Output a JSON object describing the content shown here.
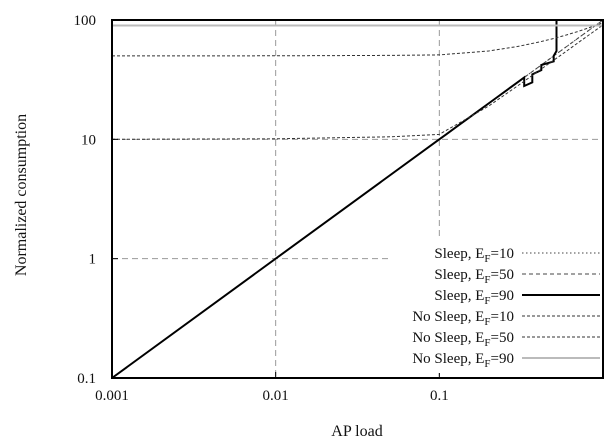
{
  "chart_data": {
    "type": "line",
    "title": "",
    "xlabel": "AP load",
    "ylabel": "Normalized consumption",
    "xscale": "log",
    "yscale": "log",
    "xlim": [
      0.001,
      1
    ],
    "ylim": [
      0.1,
      100
    ],
    "x_ticks": [
      {
        "value": 0.001,
        "label": "0.001"
      },
      {
        "value": 0.01,
        "label": "0.01"
      },
      {
        "value": 0.1,
        "label": "0.1"
      }
    ],
    "y_ticks": [
      {
        "value": 0.1,
        "label": "0.1"
      },
      {
        "value": 1,
        "label": "1"
      },
      {
        "value": 10,
        "label": "10"
      },
      {
        "value": 100,
        "label": "100"
      }
    ],
    "grid": true,
    "legend_position": "bottom-right",
    "series": [
      {
        "name": "Sleep, E_F=10",
        "legend_base": "Sleep, E",
        "legend_sub": "F",
        "legend_tail": "=10",
        "style": "dotted",
        "color": "#444444",
        "width": 1,
        "x": [
          0.001,
          0.1,
          0.12,
          0.14,
          0.17,
          0.2,
          0.25,
          0.3,
          0.35,
          0.4,
          0.5,
          0.6,
          0.7,
          0.8,
          0.9,
          1.0
        ],
        "y": [
          0.1,
          10,
          12,
          14,
          17,
          20,
          25,
          30,
          35,
          40,
          50,
          60,
          70,
          80,
          90,
          100
        ]
      },
      {
        "name": "Sleep, E_F=50",
        "legend_base": "Sleep, E",
        "legend_sub": "F",
        "legend_tail": "=50",
        "style": "dashed",
        "color": "#444444",
        "width": 1,
        "x": [
          0.001,
          0.1,
          0.15,
          0.2,
          0.25,
          0.3,
          0.35,
          0.4,
          0.5,
          0.6,
          0.7,
          0.8,
          0.9,
          1.0
        ],
        "y": [
          0.1,
          10,
          15,
          20,
          25,
          30,
          35,
          40,
          50,
          60,
          70,
          80,
          90,
          100
        ]
      },
      {
        "name": "Sleep, E_F=90",
        "legend_base": "Sleep, E",
        "legend_sub": "F",
        "legend_tail": "=90",
        "style": "solid",
        "color": "#000000",
        "width": 2,
        "x": [
          0.001,
          0.1,
          0.11,
          0.13,
          0.15,
          0.18,
          0.22,
          0.26,
          0.3,
          0.33,
          0.33,
          0.37,
          0.37,
          0.42,
          0.42,
          0.5,
          0.5,
          0.52,
          0.52,
          1.0
        ],
        "y": [
          0.1,
          10,
          11,
          13,
          15,
          18,
          22,
          26,
          30,
          33,
          28,
          30,
          35,
          38,
          42,
          45,
          50,
          55,
          100,
          100
        ]
      },
      {
        "name": "No Sleep, E_F=10",
        "legend_base": "No Sleep, E",
        "legend_sub": "F",
        "legend_tail": "=10",
        "style": "dashed-fine",
        "color": "#333333",
        "width": 1,
        "x": [
          0.001,
          0.01,
          0.05,
          0.1,
          0.2,
          0.3,
          0.4,
          0.5,
          0.6,
          0.7,
          0.8,
          0.9,
          1.0
        ],
        "y": [
          10,
          10.1,
          10.5,
          11,
          19,
          28,
          37,
          46,
          55,
          64,
          73,
          82,
          91
        ]
      },
      {
        "name": "No Sleep, E_F=50",
        "legend_base": "No Sleep, E",
        "legend_sub": "F",
        "legend_tail": "=50",
        "style": "dashed-fine",
        "color": "#333333",
        "width": 1,
        "x": [
          0.001,
          0.01,
          0.05,
          0.1,
          0.2,
          0.3,
          0.4,
          0.5,
          0.6,
          0.7,
          0.8,
          0.9,
          1.0
        ],
        "y": [
          50,
          50.1,
          50.5,
          51,
          55,
          60,
          65,
          70,
          75,
          80,
          85,
          90,
          95
        ]
      },
      {
        "name": "No Sleep, E_F=90",
        "legend_base": "No Sleep, E",
        "legend_sub": "F",
        "legend_tail": "=90",
        "style": "solid",
        "color": "#bbbbbb",
        "width": 2,
        "x": [
          0.001,
          0.1,
          0.5,
          1.0
        ],
        "y": [
          90,
          90,
          90,
          90
        ]
      }
    ]
  }
}
